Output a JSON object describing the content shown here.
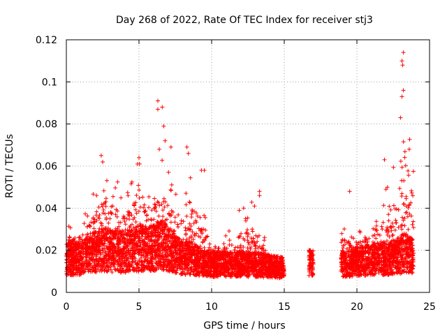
{
  "chart_data": {
    "type": "scatter",
    "title": "Day 268 of 2022, Rate Of TEC Index for receiver stj3",
    "xlabel": "GPS time / hours",
    "ylabel": "ROTI / TECUs",
    "xlim": [
      0,
      25
    ],
    "ylim": [
      0,
      0.12
    ],
    "x_ticks": [
      0,
      5,
      10,
      15,
      20,
      25
    ],
    "x_tick_labels": [
      "0",
      "5",
      "10",
      "15",
      "20",
      "25"
    ],
    "y_ticks": [
      0,
      0.02,
      0.04,
      0.06,
      0.08,
      0.1,
      0.12
    ],
    "y_tick_labels": [
      "0",
      "0.02",
      "0.04",
      "0.06",
      "0.08",
      "0.1",
      "0.12"
    ],
    "grid": true,
    "marker": "+",
    "color": "#ff0000",
    "data_windows": [
      {
        "start": 0.0,
        "end": 15.0
      },
      {
        "start": 16.7,
        "end": 17.0
      },
      {
        "start": 18.9,
        "end": 23.9
      }
    ],
    "density_profile": {
      "hours": [
        0,
        1,
        2,
        2.5,
        3,
        4,
        5,
        6,
        6.5,
        7,
        8,
        8.5,
        9,
        10,
        11,
        12,
        13,
        14,
        15,
        16.8,
        19,
        20,
        21,
        22,
        23,
        23.2,
        23.9
      ],
      "typical": [
        0.014,
        0.014,
        0.018,
        0.02,
        0.018,
        0.018,
        0.02,
        0.02,
        0.022,
        0.02,
        0.014,
        0.015,
        0.013,
        0.011,
        0.011,
        0.011,
        0.011,
        0.01,
        0.009,
        0.012,
        0.011,
        0.012,
        0.014,
        0.014,
        0.016,
        0.018,
        0.015
      ],
      "upper": [
        0.035,
        0.035,
        0.05,
        0.065,
        0.06,
        0.05,
        0.062,
        0.055,
        0.065,
        0.06,
        0.04,
        0.065,
        0.058,
        0.03,
        0.028,
        0.038,
        0.045,
        0.02,
        0.018,
        0.021,
        0.035,
        0.03,
        0.04,
        0.05,
        0.07,
        0.11,
        0.06
      ]
    },
    "notable_points": [
      {
        "x": 23.2,
        "y": 0.114
      },
      {
        "x": 23.1,
        "y": 0.11
      },
      {
        "x": 23.15,
        "y": 0.108
      },
      {
        "x": 23.2,
        "y": 0.096
      },
      {
        "x": 23.1,
        "y": 0.093
      },
      {
        "x": 23.0,
        "y": 0.083
      },
      {
        "x": 6.3,
        "y": 0.091
      },
      {
        "x": 6.6,
        "y": 0.088
      },
      {
        "x": 6.3,
        "y": 0.087
      },
      {
        "x": 6.7,
        "y": 0.079
      },
      {
        "x": 6.8,
        "y": 0.072
      },
      {
        "x": 6.4,
        "y": 0.068
      },
      {
        "x": 7.2,
        "y": 0.069
      },
      {
        "x": 8.3,
        "y": 0.069
      },
      {
        "x": 8.4,
        "y": 0.066
      },
      {
        "x": 2.4,
        "y": 0.065
      },
      {
        "x": 2.5,
        "y": 0.062
      },
      {
        "x": 5.0,
        "y": 0.064
      },
      {
        "x": 4.9,
        "y": 0.061
      },
      {
        "x": 23.6,
        "y": 0.068
      },
      {
        "x": 21.9,
        "y": 0.063
      },
      {
        "x": 9.5,
        "y": 0.058
      },
      {
        "x": 9.3,
        "y": 0.058
      },
      {
        "x": 19.5,
        "y": 0.048
      },
      {
        "x": 13.3,
        "y": 0.048
      },
      {
        "x": 13.3,
        "y": 0.046
      },
      {
        "x": 12.2,
        "y": 0.04
      },
      {
        "x": 11.9,
        "y": 0.039
      },
      {
        "x": 22.1,
        "y": 0.05
      },
      {
        "x": 22.0,
        "y": 0.049
      }
    ],
    "baseline_min": 0.004
  }
}
